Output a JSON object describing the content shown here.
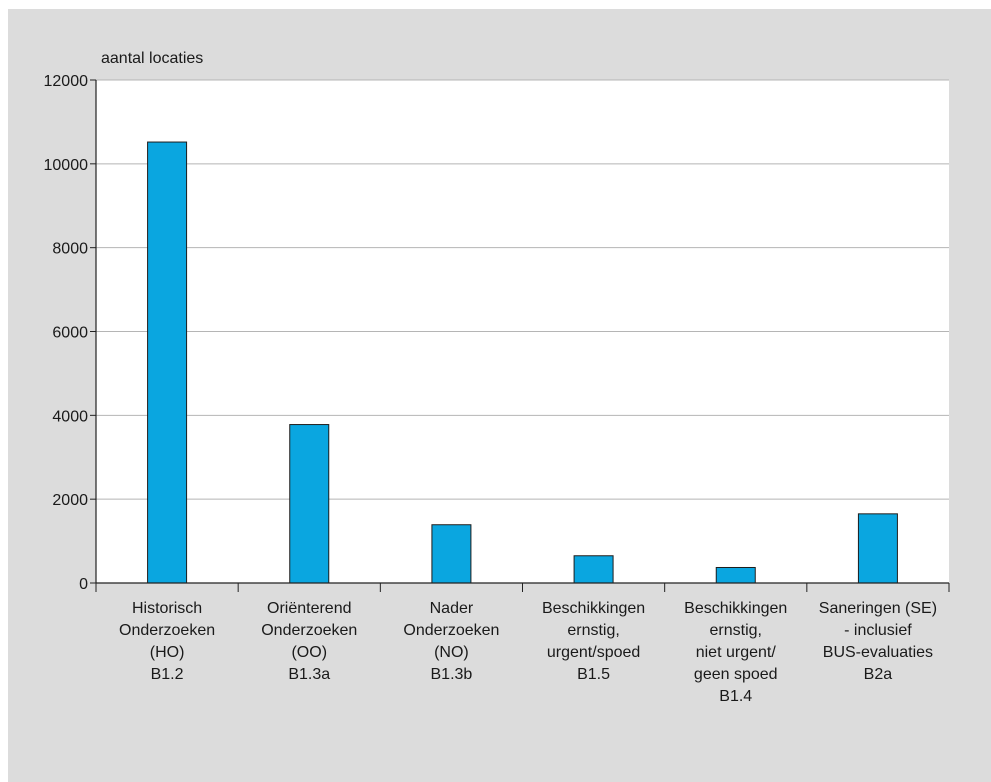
{
  "chart_data": {
    "type": "bar",
    "title": "",
    "xlabel": "",
    "ylabel": "aantal locaties",
    "ylim": [
      0,
      12000
    ],
    "yticks": [
      0,
      2000,
      4000,
      6000,
      8000,
      10000,
      12000
    ],
    "grid": true,
    "bar_color": "#0aa6e0",
    "categories": [
      [
        "Historisch",
        "Onderzoeken",
        "(HO)",
        "B1.2"
      ],
      [
        "Oriënterend",
        "Onderzoeken",
        "(OO)",
        "B1.3a"
      ],
      [
        "Nader",
        "Onderzoeken",
        "(NO)",
        "B1.3b"
      ],
      [
        "Beschikkingen",
        "ernstig,",
        "urgent/spoed",
        "B1.5"
      ],
      [
        "Beschikkingen",
        "ernstig,",
        "niet urgent/",
        "geen spoed",
        "B1.4"
      ],
      [
        "Saneringen (SE)",
        "- inclusief",
        "BUS-evaluaties",
        "B2a"
      ]
    ],
    "values": [
      10520,
      3780,
      1390,
      650,
      370,
      1650
    ]
  },
  "colors": {
    "panel_bg": "#dcdcdc",
    "plot_bg": "#ffffff",
    "bar": "#0aa6e0",
    "axis": "#222222",
    "grid": "#b5b5b5"
  }
}
